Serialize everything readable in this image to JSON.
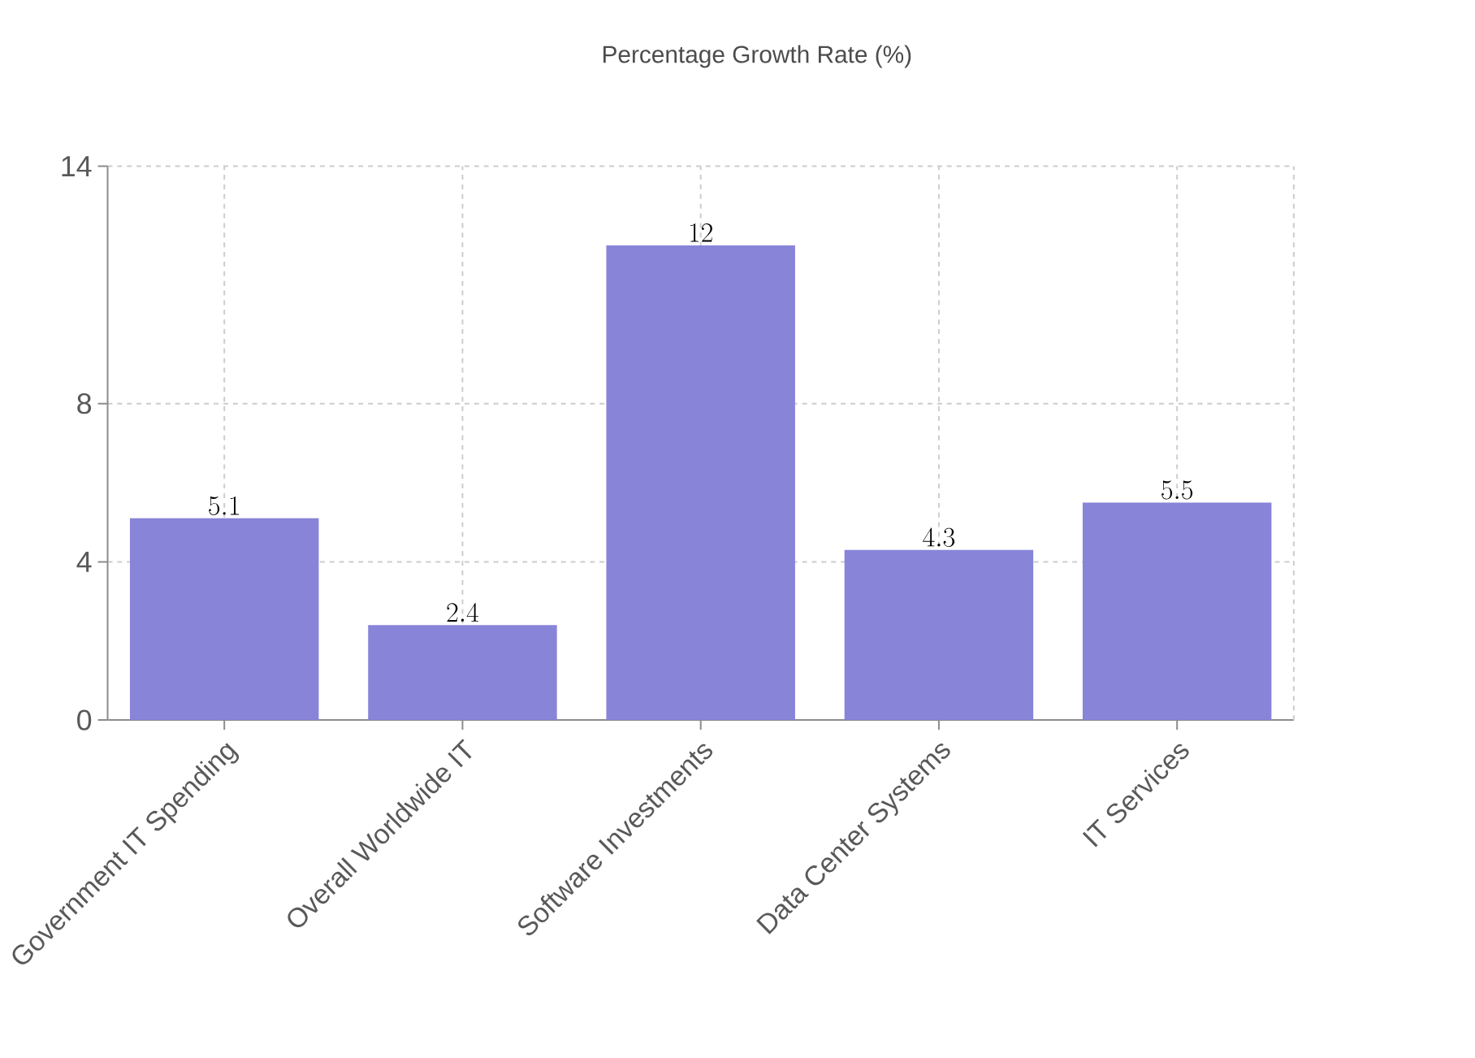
{
  "chart_data": {
    "type": "bar",
    "title": "Percentage Growth Rate (%)",
    "categories": [
      "Government IT Spending",
      "Overall Worldwide IT",
      "Software Investments",
      "Data Center Systems",
      "IT Services"
    ],
    "values": [
      5.1,
      2.4,
      12,
      4.3,
      5.5
    ],
    "color": "#8884d8",
    "ylim": [
      0,
      14
    ],
    "yticks": [
      0,
      4,
      8,
      14
    ],
    "grid": true,
    "data_labels": true
  }
}
